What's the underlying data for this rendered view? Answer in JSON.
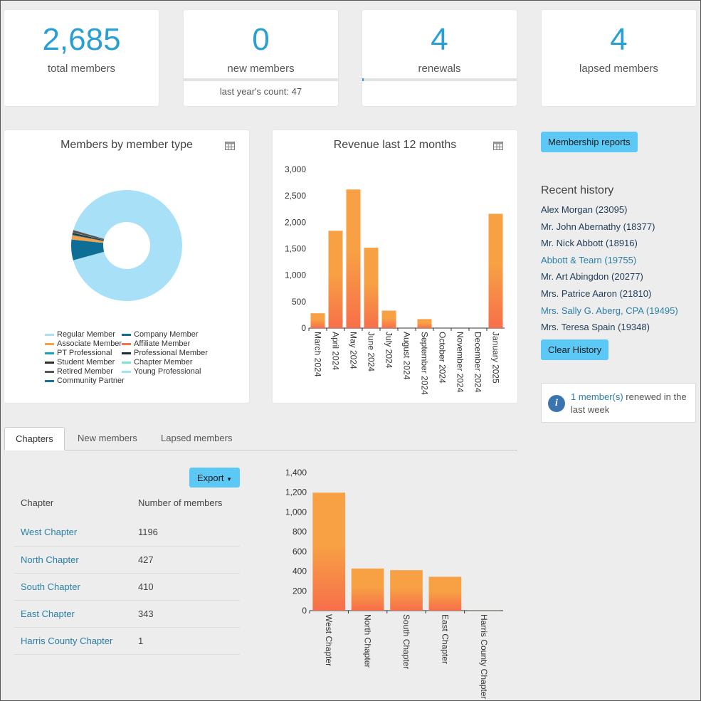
{
  "stats": [
    {
      "value": "2,685",
      "label": "total members"
    },
    {
      "value": "0",
      "label": "new members",
      "sub": "last year's count: 47",
      "progress": 0
    },
    {
      "value": "4",
      "label": "renewals",
      "progress": 0.01
    },
    {
      "value": "4",
      "label": "lapsed members"
    }
  ],
  "member_type_chart": {
    "title": "Members by member type",
    "legend": [
      {
        "name": "Regular Member",
        "color": "#a8e1f7"
      },
      {
        "name": "Company Member",
        "color": "#0f6e96"
      },
      {
        "name": "Associate Member",
        "color": "#f7a044"
      },
      {
        "name": "Affiliate Member",
        "color": "#f7744a"
      },
      {
        "name": "PT Professional",
        "color": "#1aa3b8"
      },
      {
        "name": "Professional Member",
        "color": "#1a2b3c"
      },
      {
        "name": "Student Member",
        "color": "#2d2d2d"
      },
      {
        "name": "Chapter Member",
        "color": "#7ae3d5"
      },
      {
        "name": "Retired Member",
        "color": "#555555"
      },
      {
        "name": "Young Professional",
        "color": "#9fe3f2"
      },
      {
        "name": "Community Partner",
        "color": "#1770a0"
      }
    ]
  },
  "revenue_chart": {
    "title": "Revenue last 12 months"
  },
  "buttons": {
    "membership_reports": "Membership reports",
    "clear_history": "Clear History",
    "export": "Export"
  },
  "recent_history": {
    "title": "Recent history",
    "items": [
      {
        "label": "Alex Morgan (23095)",
        "style": "dark"
      },
      {
        "label": "Mr. John Abernathy (18377)",
        "style": "dark"
      },
      {
        "label": "Mr. Nick Abbott (18916)",
        "style": "dark"
      },
      {
        "label": "Abbott & Tearn (19755)",
        "style": "light"
      },
      {
        "label": "Mr. Art Abingdon (20277)",
        "style": "dark"
      },
      {
        "label": "Mrs. Patrice Aaron (21810)",
        "style": "dark"
      },
      {
        "label": "Mrs. Sally G. Aberg, CPA (19495)",
        "style": "light"
      },
      {
        "label": "Mrs. Teresa Spain (19348)",
        "style": "dark"
      }
    ]
  },
  "info": {
    "link": "1 member(s)",
    "text": " renewed in the last week"
  },
  "tabs": [
    {
      "label": "Chapters",
      "active": true
    },
    {
      "label": "New members",
      "active": false
    },
    {
      "label": "Lapsed members",
      "active": false
    }
  ],
  "chapters_table": {
    "headers": [
      "Chapter",
      "Number of members"
    ],
    "rows": [
      {
        "name": "West Chapter",
        "count": "1196"
      },
      {
        "name": "North Chapter",
        "count": "427"
      },
      {
        "name": "South Chapter",
        "count": "410"
      },
      {
        "name": "East Chapter",
        "count": "343"
      },
      {
        "name": "Harris County Chapter",
        "count": "1"
      }
    ]
  },
  "colors": {
    "accent": "#2a9fd6",
    "button": "#5bc8f5",
    "bar_top": "#f7a044",
    "bar_bottom": "#f76f4a"
  },
  "chart_data": [
    {
      "type": "pie",
      "title": "Members by member type",
      "donut": true,
      "labels": [
        "Regular Member",
        "Company Member",
        "Associate Member",
        "Affiliate Member",
        "PT Professional",
        "Professional Member",
        "Student Member",
        "Chapter Member",
        "Retired Member",
        "Young Professional",
        "Community Partner"
      ],
      "values": [
        2449,
        162,
        30,
        2,
        5,
        4,
        12,
        2,
        19,
        0,
        0
      ],
      "legend_position": "bottom"
    },
    {
      "type": "bar",
      "title": "Revenue last 12 months",
      "categories": [
        "March 2024",
        "April 2024",
        "May 2024",
        "June 2024",
        "July 2024",
        "August 2024",
        "September 2024",
        "October 2024",
        "November 2024",
        "December 2024",
        "January 2025"
      ],
      "values": [
        280,
        1840,
        2620,
        1520,
        330,
        0,
        170,
        0,
        0,
        0,
        2160
      ],
      "ylim": [
        0,
        3000
      ],
      "yticks": [
        "0",
        "500",
        "1,000",
        "1,500",
        "2,000",
        "2,500",
        "3,000"
      ],
      "ytick_values": [
        0,
        500,
        1000,
        1500,
        2000,
        2500,
        3000
      ],
      "grid": false
    },
    {
      "type": "bar",
      "categories": [
        "West Chapter",
        "North Chapter",
        "South Chapter",
        "East Chapter",
        "Harris County Chapter"
      ],
      "values": [
        1196,
        427,
        410,
        343,
        1
      ],
      "ylim": [
        0,
        1400
      ],
      "yticks": [
        "0",
        "200",
        "400",
        "600",
        "800",
        "1,000",
        "1,200",
        "1,400"
      ],
      "ytick_values": [
        0,
        200,
        400,
        600,
        800,
        1000,
        1200,
        1400
      ],
      "grid": false
    }
  ]
}
